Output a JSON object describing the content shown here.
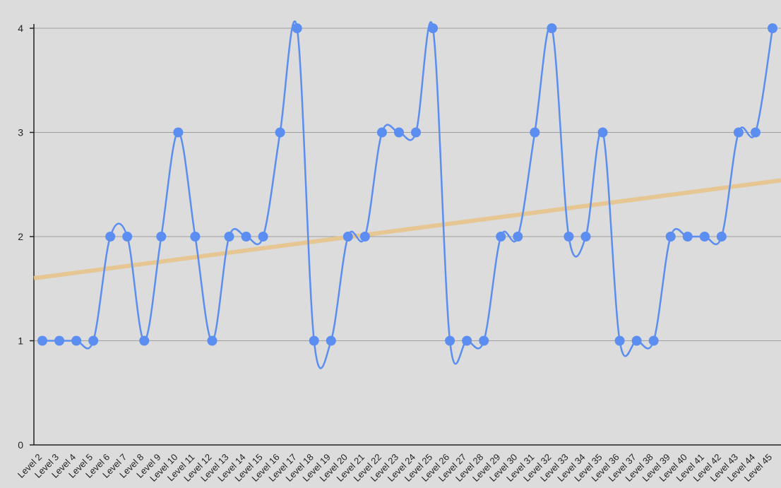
{
  "chart_data": {
    "type": "line",
    "title": "",
    "xlabel": "",
    "ylabel": "",
    "ylim": [
      0,
      4
    ],
    "yticks": [
      0,
      1,
      2,
      3,
      4
    ],
    "grid": true,
    "legend": "none",
    "categories": [
      "Level 2",
      "Level 3",
      "Level 4",
      "Level 5",
      "Level 6",
      "Level 7",
      "Level 8",
      "Level 9",
      "Level 10",
      "Level 11",
      "Level 12",
      "Level 13",
      "Level 14",
      "Level 15",
      "Level 16",
      "Level 17",
      "Level 18",
      "Level 19",
      "Level 20",
      "Level 21",
      "Level 22",
      "Level 23",
      "Level 24",
      "Level 25",
      "Level 26",
      "Level 27",
      "Level 28",
      "Level 29",
      "Level 30",
      "Level 31",
      "Level 32",
      "Level 33",
      "Level 34",
      "Level 35",
      "Level 36",
      "Level 37",
      "Level 38",
      "Level 39",
      "Level 40",
      "Level 41",
      "Level 42",
      "Level 43",
      "Level 44",
      "Level 45"
    ],
    "series": [
      {
        "values": [
          1,
          1,
          1,
          1,
          2,
          2,
          1,
          2,
          3,
          2,
          1,
          2,
          2,
          2,
          3,
          4,
          1,
          1,
          2,
          2,
          3,
          3,
          3,
          4,
          1,
          1,
          1,
          2,
          2,
          3,
          4,
          2,
          2,
          3,
          1,
          1,
          1,
          2,
          2,
          2,
          2,
          3,
          3,
          4
        ],
        "color": "#5b8ef0",
        "smooth": true,
        "markers": true
      }
    ],
    "trendline": {
      "type": "linear",
      "start": 1.6,
      "end": 2.54,
      "color": "#e8c48c"
    }
  }
}
